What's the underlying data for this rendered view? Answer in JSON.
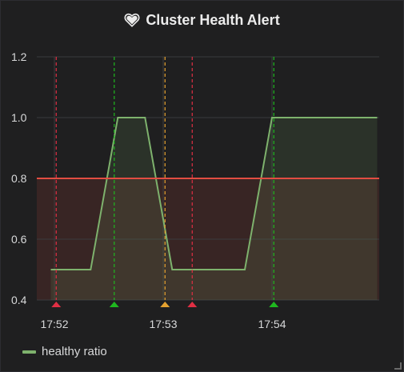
{
  "panel": {
    "title": "Cluster Health Alert",
    "title_icon": "heart-icon"
  },
  "colors": {
    "series": "#7eb26d",
    "threshold": "#e24d42",
    "ok": "#1fb81f",
    "pending": "#e5a230",
    "alerting": "#e02f44"
  },
  "chart_data": {
    "type": "area",
    "title": "Cluster Health Alert",
    "xlabel": "",
    "ylabel": "",
    "x_ticks": [
      "17:52",
      "17:53",
      "17:54"
    ],
    "ylim": [
      0.4,
      1.2
    ],
    "y_ticks": [
      "0.4",
      "0.6",
      "0.8",
      "1.0",
      "1.2"
    ],
    "grid": true,
    "legend_position": "bottom-left",
    "series": [
      {
        "name": "healthy ratio",
        "color": "#7eb26d",
        "x": [
          "17:51:58",
          "17:52:20",
          "17:52:35",
          "17:52:50",
          "17:53:05",
          "17:53:30",
          "17:53:45",
          "17:54:00",
          "17:54:58"
        ],
        "values": [
          0.5,
          0.5,
          1.0,
          1.0,
          0.5,
          0.5,
          0.5,
          1.0,
          1.0
        ]
      }
    ],
    "threshold": {
      "value": 0.8,
      "op": "lt",
      "color": "#e24d42"
    },
    "annotations": [
      {
        "time": "17:52:01",
        "state": "alerting",
        "color": "#e02f44"
      },
      {
        "time": "17:52:33",
        "state": "ok",
        "color": "#1fb81f"
      },
      {
        "time": "17:53:01",
        "state": "pending",
        "color": "#e5a230"
      },
      {
        "time": "17:53:16",
        "state": "alerting",
        "color": "#e02f44"
      },
      {
        "time": "17:54:01",
        "state": "ok",
        "color": "#1fb81f"
      }
    ]
  },
  "legend": {
    "items": [
      {
        "label": "healthy ratio",
        "color": "#7eb26d"
      }
    ]
  }
}
